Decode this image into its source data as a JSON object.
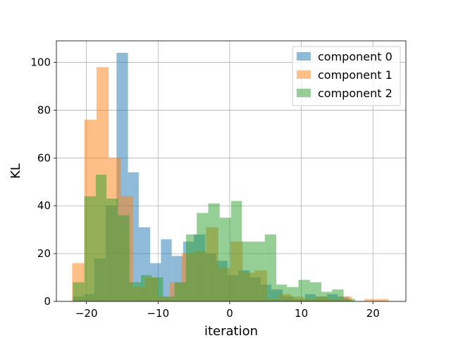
{
  "chart_data": {
    "type": "bar",
    "xlabel": "iteration",
    "ylabel": "KL",
    "xlim": [
      -24.2,
      24.6
    ],
    "ylim": [
      0,
      109
    ],
    "xticks": [
      -20,
      -10,
      0,
      10,
      20
    ],
    "xtick_labels": [
      "−20",
      "−10",
      "0",
      "10",
      "20"
    ],
    "yticks": [
      0,
      20,
      40,
      60,
      80,
      100
    ],
    "ytick_labels": [
      "0",
      "20",
      "40",
      "60",
      "80",
      "100"
    ],
    "grid": true,
    "legend_position": "top-right",
    "series": [
      {
        "name": "component 0",
        "color": "#1f77b4",
        "bars": [
          [
            -21.9,
            -20.4,
            2
          ],
          [
            -20.4,
            -18.9,
            3
          ],
          [
            -18.9,
            -17.3,
            18
          ],
          [
            -17.3,
            -15.8,
            40
          ],
          [
            -15.8,
            -14.2,
            104
          ],
          [
            -14.2,
            -12.7,
            54
          ],
          [
            -12.7,
            -11.1,
            31
          ],
          [
            -11.1,
            -9.6,
            16
          ],
          [
            -9.6,
            -8.1,
            26
          ],
          [
            -8.1,
            -6.5,
            19
          ],
          [
            -6.5,
            -5.0,
            25
          ],
          [
            -5.0,
            -3.4,
            28
          ],
          [
            -3.4,
            -1.9,
            20
          ],
          [
            -1.9,
            -0.3,
            17
          ],
          [
            -0.3,
            1.2,
            11
          ],
          [
            1.2,
            2.8,
            13
          ],
          [
            2.8,
            4.3,
            10
          ],
          [
            4.3,
            5.8,
            7
          ],
          [
            5.8,
            7.4,
            5
          ],
          [
            7.4,
            8.9,
            2
          ],
          [
            8.9,
            10.5,
            1
          ],
          [
            10.5,
            12.0,
            3
          ],
          [
            12.0,
            13.6,
            2
          ],
          [
            13.6,
            15.1,
            3
          ],
          [
            15.1,
            16.7,
            2
          ]
        ]
      },
      {
        "name": "component 1",
        "color": "#ff7f0e",
        "bars": [
          [
            -22.0,
            -20.3,
            16
          ],
          [
            -20.3,
            -18.6,
            76
          ],
          [
            -18.6,
            -16.9,
            98
          ],
          [
            -16.9,
            -15.2,
            60
          ],
          [
            -15.2,
            -13.5,
            44
          ],
          [
            -13.5,
            -11.8,
            6
          ],
          [
            -11.8,
            -10.1,
            10
          ],
          [
            -10.1,
            -8.4,
            2
          ],
          [
            -8.4,
            -6.7,
            8
          ],
          [
            -6.7,
            -5.0,
            20
          ],
          [
            -5.0,
            -3.3,
            21
          ],
          [
            -3.3,
            -1.6,
            31
          ],
          [
            -1.6,
            0.1,
            14
          ],
          [
            0.1,
            1.8,
            25
          ],
          [
            1.8,
            3.5,
            12
          ],
          [
            3.5,
            5.2,
            13
          ],
          [
            5.2,
            6.9,
            1
          ],
          [
            6.9,
            8.6,
            3
          ],
          [
            8.6,
            10.3,
            2
          ],
          [
            10.3,
            12.0,
            1
          ],
          [
            12.0,
            13.7,
            2
          ],
          [
            13.7,
            15.4,
            1
          ],
          [
            15.4,
            17.1,
            2
          ],
          [
            17.1,
            18.8,
            0
          ],
          [
            18.8,
            20.5,
            1
          ],
          [
            20.5,
            22.2,
            1
          ]
        ]
      },
      {
        "name": "component 2",
        "color": "#2ca02c",
        "bars": [
          [
            -21.9,
            -20.3,
            8
          ],
          [
            -20.3,
            -18.7,
            44
          ],
          [
            -18.7,
            -17.2,
            53
          ],
          [
            -17.2,
            -15.6,
            43
          ],
          [
            -15.6,
            -14.0,
            36
          ],
          [
            -14.0,
            -12.4,
            8
          ],
          [
            -12.4,
            -10.9,
            11
          ],
          [
            -10.9,
            -9.3,
            10
          ],
          [
            -9.3,
            -7.7,
            2
          ],
          [
            -7.7,
            -6.1,
            8
          ],
          [
            -6.1,
            -4.6,
            28
          ],
          [
            -4.6,
            -3.0,
            37
          ],
          [
            -3.0,
            -1.4,
            41
          ],
          [
            -1.4,
            0.2,
            35
          ],
          [
            0.2,
            1.7,
            42
          ],
          [
            1.7,
            3.3,
            25
          ],
          [
            3.3,
            4.9,
            25
          ],
          [
            4.9,
            6.5,
            28
          ],
          [
            6.5,
            8.0,
            7
          ],
          [
            8.0,
            9.6,
            6
          ],
          [
            9.6,
            11.2,
            9
          ],
          [
            11.2,
            12.8,
            8
          ],
          [
            12.8,
            14.3,
            4
          ],
          [
            14.3,
            15.9,
            5
          ],
          [
            15.9,
            17.5,
            1
          ]
        ]
      }
    ]
  }
}
